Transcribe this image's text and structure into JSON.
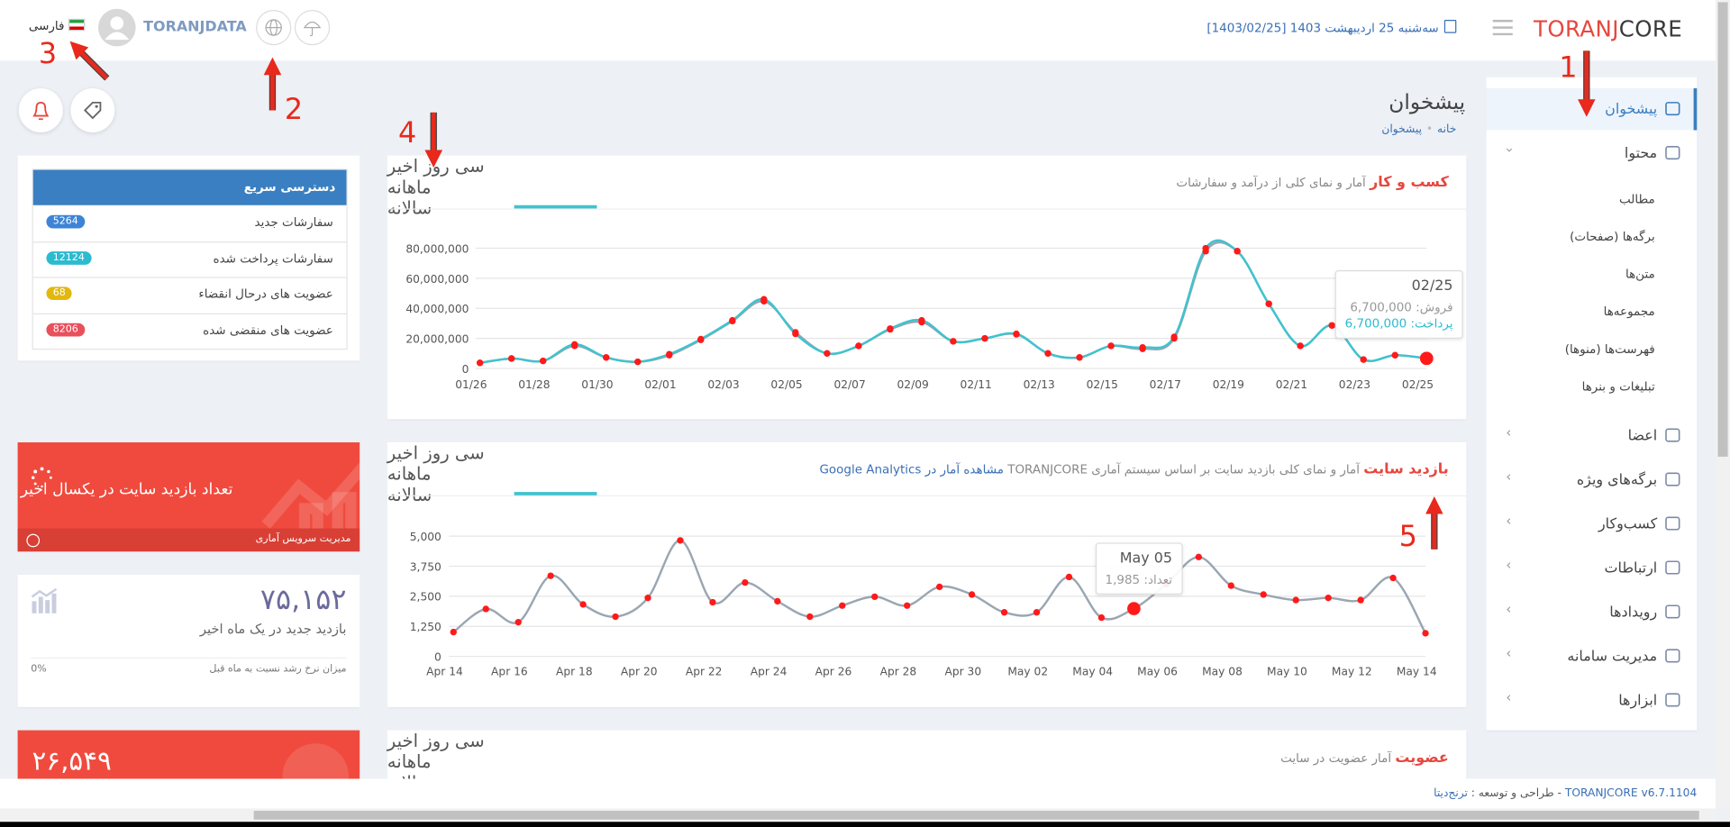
{
  "header": {
    "logo": [
      "TORANJ",
      "CORE"
    ],
    "date": "سه‌شنبه 25 اردیبهشت 1403 [1403/02/25]",
    "user": "TORANJDATA",
    "language": "فارسی"
  },
  "annotations": [
    "1",
    "2",
    "3",
    "4",
    "5"
  ],
  "sidebar": {
    "items": [
      "پیشخوان",
      "محتوا",
      "اعضا",
      "برگه‌های ویژه",
      "کسب‌وکار",
      "ارتباطات",
      "رویدادها",
      "مدیریت سامانه",
      "ابزارها"
    ],
    "sub_items": [
      "مطالب",
      "برگه‌ها (صفحات)",
      "متن‌ها",
      "مجموعه‌ها",
      "فهرست‌ها (منوها)",
      "تبلیغات و بنرها"
    ]
  },
  "page": {
    "title": "پیشخوان",
    "breadcrumb": [
      "خانه",
      "پیشخوان"
    ]
  },
  "tabs": [
    "سی روز اخیر",
    "ماهانه",
    "سالانه"
  ],
  "chart_data": [
    {
      "type": "line",
      "title": "کسب و کار",
      "subtitle": "آمار و نمای کلی از درآمد و سفارشات",
      "categories": [
        "01/26",
        null,
        "01/28",
        null,
        "01/30",
        null,
        "02/01",
        null,
        "02/03",
        null,
        "02/05",
        null,
        "02/07",
        null,
        "02/09",
        null,
        "02/11",
        null,
        "02/13",
        null,
        "02/15",
        null,
        "02/17",
        null,
        "02/19",
        null,
        "02/21",
        null,
        "02/23",
        null,
        "02/25"
      ],
      "series": [
        {
          "color": "#9aa6b2",
          "values": [
            3700000,
            6600000,
            5000000,
            15000000,
            7300000,
            4400000,
            8800000,
            19000000,
            31500000,
            44700000,
            24000000,
            10000000,
            15000000,
            26000000,
            30800000,
            18000000,
            20000000,
            22700000,
            10000000,
            7300000,
            15000000,
            13000000,
            20000000,
            78000000,
            78000000,
            43000000,
            15000000,
            28600000,
            5900000,
            8800000,
            6700000
          ]
        },
        {
          "color": "#3fc3cf",
          "values": [
            3700000,
            6600000,
            5000000,
            16000000,
            7300000,
            4400000,
            9500000,
            19500000,
            32000000,
            46000000,
            23000000,
            10000000,
            15000000,
            26500000,
            32000000,
            18000000,
            20000000,
            23000000,
            10000000,
            7300000,
            15000000,
            14000000,
            21000000,
            80000000,
            78000000,
            43000000,
            15000000,
            28600000,
            5900000,
            8800000,
            6700000
          ]
        }
      ],
      "marker_color": "#ff1a1a",
      "ylim": [
        0,
        90000000
      ],
      "yticks": [
        0,
        {
          "value": 20000000,
          "label": "20,000,000"
        },
        {
          "value": 40000000,
          "label": "40,000,000"
        },
        {
          "value": 60000000,
          "label": "60,000,000"
        },
        {
          "value": 80000000,
          "label": "80,000,000"
        }
      ],
      "grid": true,
      "tooltip": {
        "title": "02/25",
        "lines": [
          {
            "label": "فروش:",
            "value": "6,700,000"
          },
          {
            "label": "پرداخت:",
            "value": "6,700,000"
          }
        ]
      }
    },
    {
      "type": "line",
      "title": "بازدید سایت",
      "subtitle": "آمار و نمای کلی بازدید سایت بر اساس سیستم آماری TORANJCORE",
      "link": "مشاهده آمار در Google Analytics",
      "categories": [
        "Apr 14",
        null,
        "Apr 16",
        null,
        "Apr 18",
        null,
        "Apr 20",
        null,
        "Apr 22",
        null,
        "Apr 24",
        null,
        "Apr 26",
        null,
        "Apr 28",
        null,
        "Apr 30",
        null,
        "May 02",
        null,
        "May 04",
        null,
        "May 06",
        null,
        "May 08",
        null,
        "May 10",
        null,
        "May 12",
        null,
        "May 14"
      ],
      "values": [
        1010,
        1970,
        1420,
        3350,
        2160,
        1650,
        2430,
        4820,
        2250,
        3070,
        2290,
        1650,
        2110,
        2480,
        2110,
        2890,
        2570,
        1830,
        1830,
        3300,
        1610,
        1985,
        3000,
        4130,
        2940,
        2570,
        2340,
        2430,
        2340,
        3260,
        960
      ],
      "color": "#9aa6b2",
      "marker_color": "#ff1a1a",
      "ylim": [
        0,
        5000
      ],
      "yticks": [
        0,
        {
          "value": 1250,
          "label": "1,250"
        },
        {
          "value": 2500,
          "label": "2,500"
        },
        {
          "value": 3750,
          "label": "3,750"
        },
        {
          "value": 5000,
          "label": "5,000"
        }
      ],
      "grid": true,
      "tooltip": {
        "title": "May 05",
        "lines": [
          {
            "label": "تعداد:",
            "value": "1,985"
          }
        ]
      }
    }
  ],
  "membership": {
    "title": "عضویت",
    "subtitle": "آمار عضویت در سایت"
  },
  "quick_access": {
    "title": "دسترسی سریع",
    "rows": [
      {
        "label": "سفارشات جدید",
        "value": 5264
      },
      {
        "label": "سفارشات پرداخت شده",
        "value": 12124
      },
      {
        "label": "عضویت های درحال انقضاء",
        "value": 68
      },
      {
        "label": "عضویت های منقضی شده",
        "value": 8206
      }
    ]
  },
  "visit_card": {
    "title": "تعداد بازدید سایت در یکسال اخیر",
    "link": "مدیریت سرویس آماری"
  },
  "stat": {
    "value": "۷۵,۱۵۲",
    "label": "بازدید جدید در یک ماه اخیر",
    "growth_label": "میزان نرخ رشد نسبت به ماه قبل",
    "growth": "0%"
  },
  "members_stat": {
    "value": "۲۶,۵۴۹"
  },
  "footer": {
    "version": "TORANJCORE v6.7.1104",
    "credit": "- طراحی و توسعه :",
    "author": "ترنج‌دیتا"
  }
}
